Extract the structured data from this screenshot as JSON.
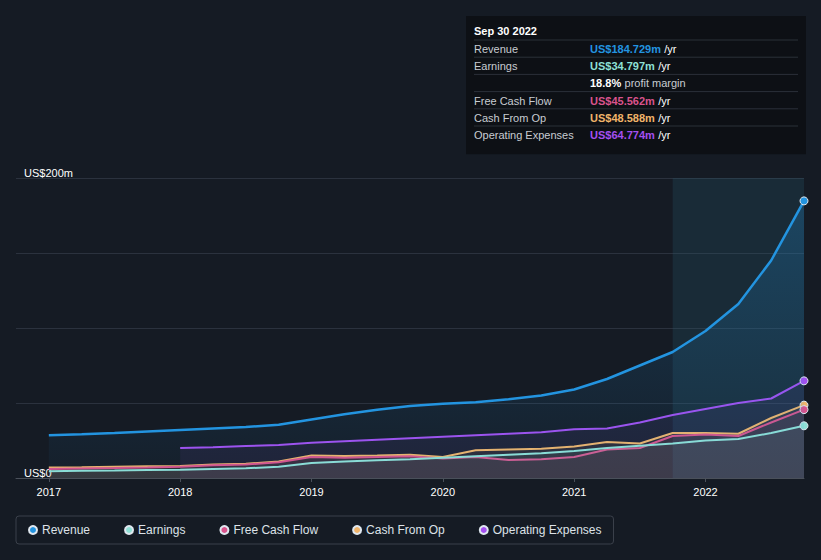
{
  "chart_data": {
    "type": "line",
    "x": [
      2017.0,
      2017.25,
      2017.5,
      2017.75,
      2018.0,
      2018.25,
      2018.5,
      2018.75,
      2019.0,
      2019.25,
      2019.5,
      2019.75,
      2020.0,
      2020.25,
      2020.5,
      2020.75,
      2021.0,
      2021.25,
      2021.5,
      2021.75,
      2022.0,
      2022.25,
      2022.5,
      2022.75
    ],
    "xlim": [
      2016.75,
      2022.75
    ],
    "xticks": [
      2017,
      2018,
      2019,
      2020,
      2021,
      2022
    ],
    "ylim": [
      0,
      200
    ],
    "yticks": [
      {
        "value": 0,
        "label": "US$0"
      },
      {
        "value": 50,
        "label": null
      },
      {
        "value": 100,
        "label": null
      },
      {
        "value": 150,
        "label": null
      },
      {
        "value": 200,
        "label": "US$200m"
      }
    ],
    "grid": true,
    "legend": "bottom-left",
    "marker": "circle",
    "highlight_range": [
      2021.75,
      2022.75
    ],
    "series": [
      {
        "name": "Revenue",
        "color": "#2394e0",
        "values": [
          28.5,
          29.2,
          30,
          31,
          32,
          33,
          34,
          35.5,
          39,
          42.5,
          45.5,
          48,
          49.5,
          50.5,
          52.5,
          55,
          59,
          66,
          75,
          84,
          98,
          116,
          145,
          184.729
        ]
      },
      {
        "name": "Earnings",
        "color": "#8fe0d6",
        "values": [
          4.5,
          4.8,
          5,
          5.3,
          5.5,
          6,
          6.5,
          7.5,
          10,
          11,
          11.8,
          12.5,
          13.5,
          14.5,
          15.5,
          16.5,
          18,
          20,
          21.5,
          23,
          25,
          26,
          30,
          34.797
        ]
      },
      {
        "name": "Free Cash Flow",
        "color": "#d9538c",
        "values": [
          6,
          6.3,
          6.6,
          7,
          7.5,
          8.5,
          9,
          10.5,
          14,
          13.5,
          14,
          14.5,
          13,
          14,
          12,
          12.5,
          14,
          19,
          20,
          28,
          29,
          28,
          37,
          45.562
        ]
      },
      {
        "name": "Cash From Op",
        "color": "#f0b46a",
        "values": [
          7,
          7.2,
          7.5,
          7.8,
          8,
          9,
          9.5,
          11,
          15,
          14.7,
          15,
          15.5,
          14,
          18.5,
          19,
          19.5,
          21,
          24,
          23,
          30,
          30,
          29.5,
          40,
          48.588
        ]
      },
      {
        "name": "Operating Expenses",
        "color": "#a44ff0",
        "values": [
          null,
          null,
          null,
          null,
          20,
          20.5,
          21.3,
          22,
          23.5,
          24.5,
          25.5,
          26.5,
          27.5,
          28.5,
          29.5,
          30.5,
          32.5,
          33,
          37,
          42,
          46,
          50,
          53,
          64.774
        ]
      }
    ],
    "annotation": {
      "title": "Sep 30 2022",
      "rows": [
        {
          "label": "Revenue",
          "value": "US$184.729m",
          "unit": "/yr",
          "color": "#2394e0"
        },
        {
          "label": "Earnings",
          "value": "US$34.797m",
          "unit": "/yr",
          "color": "#8fe0d6"
        },
        {
          "value": "18.8%",
          "unit": "profit margin"
        },
        {
          "label": "Free Cash Flow",
          "value": "US$45.562m",
          "unit": "/yr",
          "color": "#d9538c"
        },
        {
          "label": "Cash From Op",
          "value": "US$48.588m",
          "unit": "/yr",
          "color": "#f0b46a"
        },
        {
          "label": "Operating Expenses",
          "value": "US$64.774m",
          "unit": "/yr",
          "color": "#a44ff0"
        }
      ]
    }
  }
}
